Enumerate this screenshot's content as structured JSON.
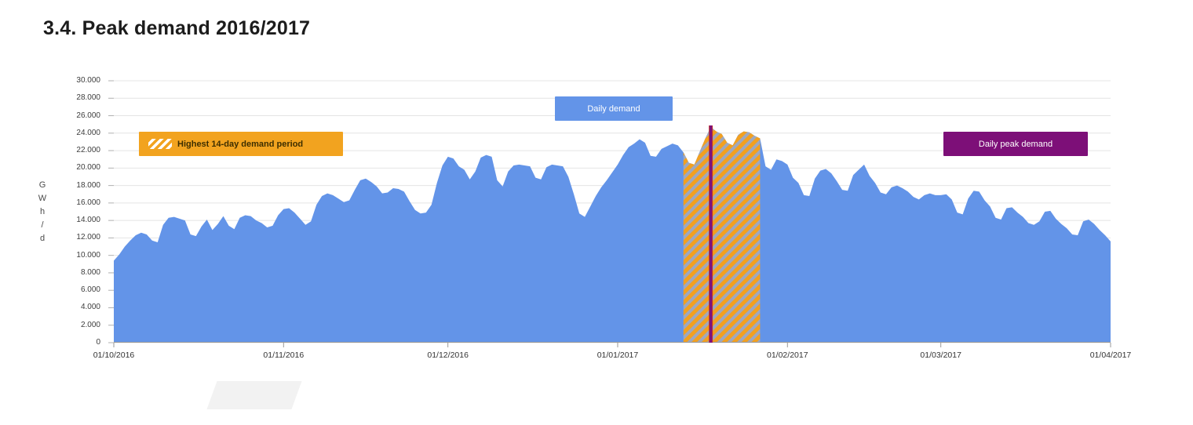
{
  "page": {
    "title": "3.4. Peak demand 2016/2017"
  },
  "legends": {
    "highest_14day": {
      "label": "Highest 14-day demand period",
      "bg": "#f2a31f",
      "text_color": "#3d2e00"
    },
    "daily_demand": {
      "label": "Daily demand",
      "bg": "#6394e8",
      "text_color": "#ffffff"
    },
    "daily_peak": {
      "label": "Daily peak demand",
      "bg": "#7d0f78",
      "text_color": "#ffffff"
    }
  },
  "chart_data": {
    "type": "area",
    "title": "3.4. Peak demand 2016/2017",
    "ylabel": "GWh/d",
    "ylabel_stacked": [
      "G",
      "W",
      "h",
      "/",
      "d"
    ],
    "ylim": [
      0,
      30000
    ],
    "ytick_step": 2000,
    "ytick_labels": [
      "0",
      "2.000",
      "4.000",
      "6.000",
      "8.000",
      "10.000",
      "12.000",
      "14.000",
      "16.000",
      "18.000",
      "20.000",
      "22.000",
      "24.000",
      "26.000",
      "28.000",
      "30.000"
    ],
    "grid": true,
    "x_axis": {
      "tick_labels": [
        "01/10/2016",
        "01/11/2016",
        "01/12/2016",
        "01/01/2017",
        "01/02/2017",
        "01/03/2017",
        "01/04/2017"
      ],
      "tick_day_offsets": [
        0,
        31,
        61,
        92,
        123,
        151,
        182
      ],
      "total_days": 182
    },
    "series": [
      {
        "name": "Daily demand",
        "color": "#6394e8",
        "start_date": "01/10/2016",
        "unit": "GWh/d",
        "values": [
          9400,
          10100,
          11000,
          11700,
          12300,
          12600,
          12400,
          11700,
          11500,
          13500,
          14300,
          14400,
          14200,
          14000,
          12400,
          12200,
          13300,
          14100,
          12900,
          13600,
          14500,
          13400,
          13000,
          14300,
          14600,
          14500,
          14000,
          13700,
          13200,
          13400,
          14600,
          15300,
          15400,
          14900,
          14200,
          13500,
          13900,
          15800,
          16800,
          17100,
          16900,
          16500,
          16100,
          16300,
          17500,
          18600,
          18800,
          18400,
          17900,
          17100,
          17200,
          17700,
          17600,
          17300,
          16200,
          15200,
          14800,
          14900,
          15800,
          18300,
          20300,
          21300,
          21100,
          20200,
          19800,
          18700,
          19600,
          21200,
          21500,
          21300,
          18600,
          17900,
          19600,
          20300,
          20400,
          20300,
          20200,
          18900,
          18700,
          20100,
          20400,
          20300,
          20200,
          19000,
          17000,
          14800,
          14400,
          15600,
          16800,
          17800,
          18600,
          19500,
          20400,
          21500,
          22400,
          22800,
          23300,
          22900,
          21400,
          21300,
          22200,
          22500,
          22800,
          22600,
          21800,
          20600,
          20400,
          21900,
          23400,
          24700,
          24200,
          23900,
          22900,
          22600,
          23800,
          24200,
          24100,
          23700,
          23400,
          20200,
          19800,
          21000,
          20800,
          20400,
          18900,
          18300,
          16900,
          16800,
          18800,
          19700,
          19900,
          19400,
          18500,
          17500,
          17400,
          19200,
          19800,
          20400,
          19100,
          18300,
          17200,
          17000,
          17800,
          18000,
          17700,
          17300,
          16700,
          16400,
          16900,
          17100,
          16900,
          16900,
          17000,
          16400,
          14900,
          14700,
          16500,
          17400,
          17300,
          16300,
          15600,
          14300,
          14100,
          15400,
          15500,
          14900,
          14400,
          13700,
          13500,
          13900,
          15000,
          15100,
          14200,
          13600,
          13100,
          12400,
          12300,
          13900,
          14100,
          13600,
          12900,
          12300,
          11600
        ]
      }
    ],
    "highlight_band": {
      "label": "Highest 14-day demand period",
      "stripe_color": "#f2a020",
      "base_color": "#9fa8bd",
      "start_day_index": 104,
      "end_day_index": 118
    },
    "peak_line": {
      "label": "Daily peak demand",
      "color": "#7b117b",
      "edge_color": "#c03030",
      "day_index": 109
    },
    "colors": {
      "gridline": "#e4e4e4",
      "axis": "#9a9a9a",
      "tick": "#b0b0b0",
      "label_text": "#3c3c3c"
    }
  }
}
